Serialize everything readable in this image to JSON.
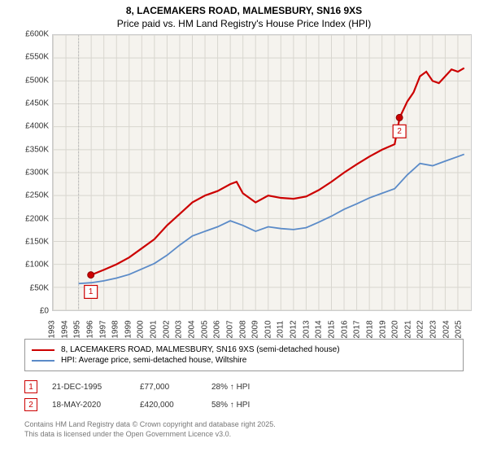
{
  "title": "8, LACEMAKERS ROAD, MALMESBURY, SN16 9XS",
  "subtitle": "Price paid vs. HM Land Registry's House Price Index (HPI)",
  "chart": {
    "type": "line",
    "background_color": "#f5f3ee",
    "grid_color": "#d8d6cf",
    "xlim": [
      1993,
      2026
    ],
    "ylim": [
      0,
      600000
    ],
    "ytick_step": 50000,
    "yticks": [
      "£0",
      "£50K",
      "£100K",
      "£150K",
      "£200K",
      "£250K",
      "£300K",
      "£350K",
      "£400K",
      "£450K",
      "£500K",
      "£550K",
      "£600K"
    ],
    "xticks": [
      1993,
      1994,
      1995,
      1996,
      1997,
      1998,
      1999,
      2000,
      2001,
      2002,
      2003,
      2004,
      2005,
      2006,
      2007,
      2008,
      2009,
      2010,
      2011,
      2012,
      2013,
      2014,
      2015,
      2016,
      2017,
      2018,
      2019,
      2020,
      2021,
      2022,
      2023,
      2024,
      2025
    ],
    "dash_x": 1995,
    "series": {
      "property": {
        "label": "8, LACEMAKERS ROAD, MALMESBURY, SN16 9XS (semi-detached house)",
        "color": "#cc0000",
        "width": 2.2,
        "data": [
          [
            1996.0,
            77000
          ],
          [
            1997,
            88000
          ],
          [
            1998,
            100000
          ],
          [
            1999,
            115000
          ],
          [
            2000,
            135000
          ],
          [
            2001,
            155000
          ],
          [
            2002,
            185000
          ],
          [
            2003,
            210000
          ],
          [
            2004,
            235000
          ],
          [
            2005,
            250000
          ],
          [
            2006,
            260000
          ],
          [
            2007,
            275000
          ],
          [
            2007.5,
            280000
          ],
          [
            2008,
            255000
          ],
          [
            2008.5,
            245000
          ],
          [
            2009,
            235000
          ],
          [
            2010,
            250000
          ],
          [
            2011,
            245000
          ],
          [
            2012,
            243000
          ],
          [
            2013,
            248000
          ],
          [
            2014,
            262000
          ],
          [
            2015,
            280000
          ],
          [
            2016,
            300000
          ],
          [
            2017,
            318000
          ],
          [
            2018,
            335000
          ],
          [
            2019,
            350000
          ],
          [
            2020,
            362000
          ],
          [
            2020.4,
            420000
          ],
          [
            2021,
            455000
          ],
          [
            2021.5,
            475000
          ],
          [
            2022,
            510000
          ],
          [
            2022.5,
            520000
          ],
          [
            2023,
            500000
          ],
          [
            2023.5,
            495000
          ],
          [
            2024,
            510000
          ],
          [
            2024.5,
            525000
          ],
          [
            2025,
            520000
          ],
          [
            2025.5,
            528000
          ]
        ]
      },
      "hpi": {
        "label": "HPI: Average price, semi-detached house, Wiltshire",
        "color": "#5b8bc8",
        "width": 1.8,
        "data": [
          [
            1995,
            58000
          ],
          [
            1996,
            60000
          ],
          [
            1997,
            64000
          ],
          [
            1998,
            70000
          ],
          [
            1999,
            78000
          ],
          [
            2000,
            90000
          ],
          [
            2001,
            102000
          ],
          [
            2002,
            120000
          ],
          [
            2003,
            142000
          ],
          [
            2004,
            162000
          ],
          [
            2005,
            172000
          ],
          [
            2006,
            182000
          ],
          [
            2007,
            195000
          ],
          [
            2008,
            185000
          ],
          [
            2009,
            172000
          ],
          [
            2010,
            182000
          ],
          [
            2011,
            178000
          ],
          [
            2012,
            176000
          ],
          [
            2013,
            180000
          ],
          [
            2014,
            192000
          ],
          [
            2015,
            205000
          ],
          [
            2016,
            220000
          ],
          [
            2017,
            232000
          ],
          [
            2018,
            245000
          ],
          [
            2019,
            255000
          ],
          [
            2020,
            265000
          ],
          [
            2021,
            295000
          ],
          [
            2022,
            320000
          ],
          [
            2023,
            315000
          ],
          [
            2024,
            325000
          ],
          [
            2025,
            335000
          ],
          [
            2025.5,
            340000
          ]
        ]
      }
    },
    "markers": [
      {
        "n": "1",
        "year": 1995.97,
        "price": 77000,
        "tag_y": 40000
      },
      {
        "n": "2",
        "year": 2020.38,
        "price": 420000,
        "tag_y": 390000
      }
    ]
  },
  "notes": [
    {
      "n": "1",
      "date": "21-DEC-1995",
      "price": "£77,000",
      "delta": "28% ↑ HPI"
    },
    {
      "n": "2",
      "date": "18-MAY-2020",
      "price": "£420,000",
      "delta": "58% ↑ HPI"
    }
  ],
  "footer": {
    "l1": "Contains HM Land Registry data © Crown copyright and database right 2025.",
    "l2": "This data is licensed under the Open Government Licence v3.0."
  }
}
